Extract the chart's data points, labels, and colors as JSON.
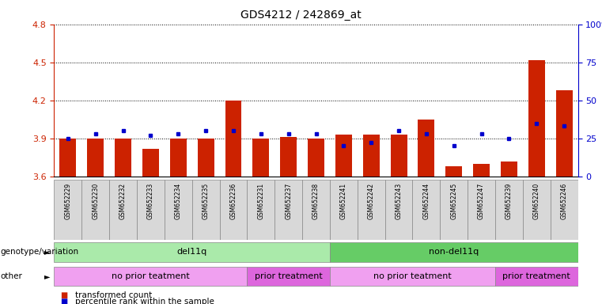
{
  "title": "GDS4212 / 242869_at",
  "samples": [
    "GSM652229",
    "GSM652230",
    "GSM652232",
    "GSM652233",
    "GSM652234",
    "GSM652235",
    "GSM652236",
    "GSM652231",
    "GSM652237",
    "GSM652238",
    "GSM652241",
    "GSM652242",
    "GSM652243",
    "GSM652244",
    "GSM652245",
    "GSM652247",
    "GSM652239",
    "GSM652240",
    "GSM652246"
  ],
  "red_values": [
    3.9,
    3.9,
    3.9,
    3.82,
    3.9,
    3.9,
    4.2,
    3.9,
    3.91,
    3.9,
    3.93,
    3.93,
    3.93,
    4.05,
    3.68,
    3.7,
    3.72,
    4.52,
    4.28
  ],
  "blue_values": [
    25,
    28,
    30,
    27,
    28,
    30,
    30,
    28,
    28,
    28,
    20,
    22,
    30,
    28,
    20,
    28,
    25,
    35,
    33
  ],
  "ylim": [
    3.6,
    4.8
  ],
  "yticks": [
    3.6,
    3.9,
    4.2,
    4.5,
    4.8
  ],
  "right_ylim": [
    0,
    100
  ],
  "right_yticks": [
    0,
    25,
    50,
    75,
    100
  ],
  "genotype_groups": [
    {
      "label": "del11q",
      "start": 0,
      "end": 10,
      "color": "#aaeaaa"
    },
    {
      "label": "non-del11q",
      "start": 10,
      "end": 19,
      "color": "#66cc66"
    }
  ],
  "treatment_groups": [
    {
      "label": "no prior teatment",
      "start": 0,
      "end": 7,
      "color": "#f0a0f0"
    },
    {
      "label": "prior treatment",
      "start": 7,
      "end": 10,
      "color": "#dd66dd"
    },
    {
      "label": "no prior teatment",
      "start": 10,
      "end": 16,
      "color": "#f0a0f0"
    },
    {
      "label": "prior treatment",
      "start": 16,
      "end": 19,
      "color": "#dd66dd"
    }
  ],
  "bar_color": "#cc2200",
  "dot_color": "#0000cc",
  "grid_color": "#000000",
  "title_color": "#000000",
  "left_axis_color": "#cc2200",
  "right_axis_color": "#0000cc",
  "legend_red": "transformed count",
  "legend_blue": "percentile rank within the sample",
  "genotype_label": "genotype/variation",
  "other_label": "other",
  "sample_box_color": "#d8d8d8"
}
